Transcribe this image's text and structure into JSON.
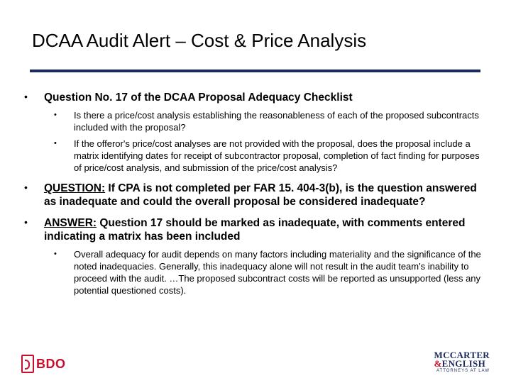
{
  "title": "DCAA Audit Alert – Cost & Price Analysis",
  "bullets": {
    "b0": {
      "text": "Question No. 17 of the DCAA Proposal Adequacy Checklist",
      "sub": {
        "s0": "Is there a price/cost analysis establishing the reasonableness of each of the proposed subcontracts included with the proposal?",
        "s1": "If the offeror's price/cost analyses are not provided with the proposal, does the proposal include a matrix identifying dates for receipt of subcontractor proposal, completion of fact finding for purposes of price/cost analysis, and submission of the price/cost analysis?"
      }
    },
    "b1": {
      "label": "QUESTION:",
      "rest": "  If CPA is not completed per FAR 15. 404-3(b), is the question answered as inadequate and could the overall proposal be considered inadequate?"
    },
    "b2": {
      "label": "ANSWER:",
      "rest": "  Question 17 should be marked as inadequate, with comments entered indicating a matrix has been included",
      "sub": {
        "s0": "Overall adequacy for audit depends on many factors including materiality and the significance of the noted inadequacies. Generally, this inadequacy alone will not result in the audit team's inability to proceed with the audit. …The proposed subcontract costs will be reported as unsupported (less any potential questioned costs)."
      }
    }
  },
  "logos": {
    "bdo": "BDO",
    "me_line1": "MCCARTER",
    "me_amp": "&",
    "me_line2": "ENGLISH",
    "me_sub": "ATTORNEYS AT LAW"
  },
  "colors": {
    "rule": "#1a2a5c",
    "accent_red": "#c8102e"
  }
}
